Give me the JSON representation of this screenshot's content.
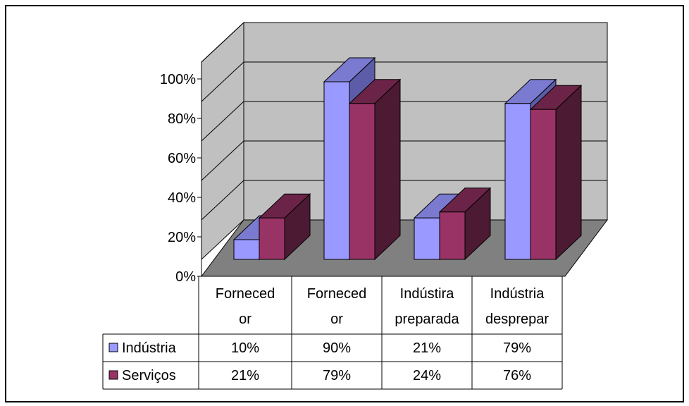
{
  "chart_data": {
    "type": "bar",
    "categories": [
      [
        "Forneced",
        "or"
      ],
      [
        "Forneced",
        "or"
      ],
      [
        "Indústira",
        "preparada"
      ],
      [
        "Indústria",
        "desprepar"
      ]
    ],
    "series": [
      {
        "name": "Indústria",
        "values": [
          10,
          90,
          21,
          79
        ],
        "labels": [
          "10%",
          "90%",
          "21%",
          "79%"
        ],
        "color": "#9999FF"
      },
      {
        "name": "Serviços",
        "values": [
          21,
          79,
          24,
          76
        ],
        "labels": [
          "21%",
          "79%",
          "24%",
          "76%"
        ],
        "color": "#993366"
      }
    ],
    "yticks": [
      "0%",
      "20%",
      "40%",
      "60%",
      "80%",
      "100%"
    ],
    "ylim": [
      0,
      100
    ],
    "grid": true,
    "style": "3d-clustered-column",
    "legend": "in data table",
    "colors": {
      "floor": "#808080",
      "walls": "#c0c0c0",
      "gridline": "#000000",
      "Indústria_side": "#5c5ca8",
      "Indústria_top": "#7a7ad0",
      "Serviços_side": "#4d1a33",
      "Serviços_top": "#6b2447"
    }
  }
}
